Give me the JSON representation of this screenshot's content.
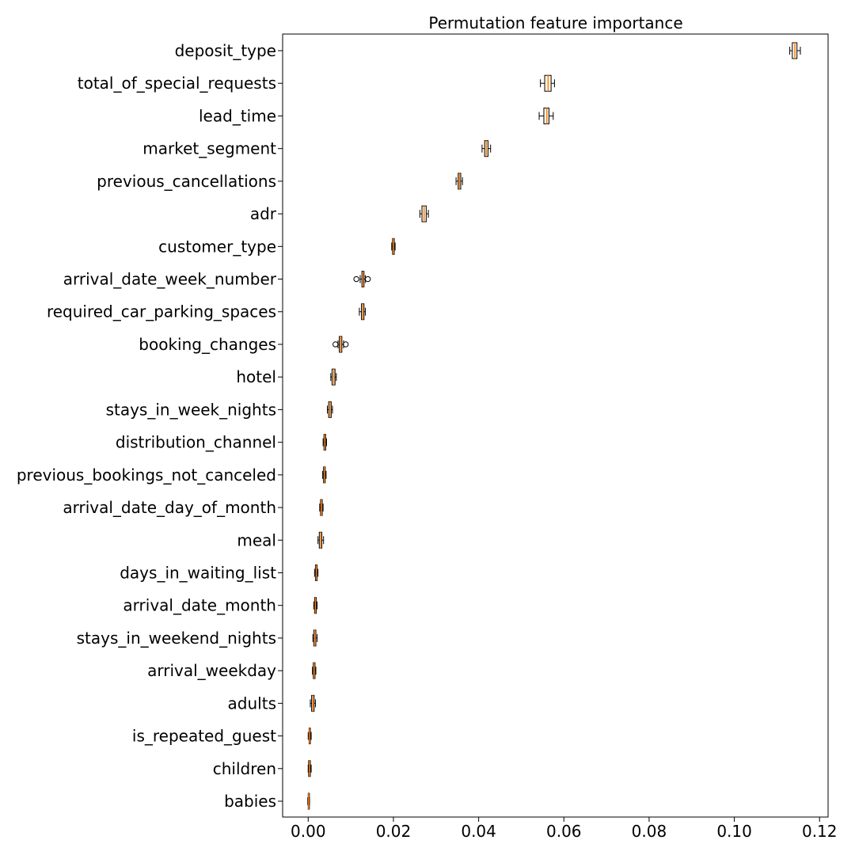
{
  "chart_data": {
    "type": "boxplot",
    "orientation": "horizontal",
    "title": "Permutation feature importance",
    "xlabel": "",
    "ylabel": "",
    "xlim": [
      -0.006,
      0.122
    ],
    "xticks": [
      0.0,
      0.02,
      0.04,
      0.06,
      0.08,
      0.1,
      0.12
    ],
    "xtick_labels": [
      "0.00",
      "0.02",
      "0.04",
      "0.06",
      "0.08",
      "0.10",
      "0.12"
    ],
    "grid": false,
    "legend": "none",
    "colors": {
      "box_edge": "#000000",
      "box_fill": "#fff7e6",
      "median": "#ff7f0e",
      "whisker": "#000000"
    },
    "features": [
      {
        "name": "deposit_type",
        "min": 0.113,
        "q1": 0.1136,
        "median": 0.1142,
        "q3": 0.1147,
        "max": 0.1155,
        "outliers": []
      },
      {
        "name": "total_of_special_requests",
        "min": 0.0545,
        "q1": 0.0555,
        "median": 0.0563,
        "q3": 0.057,
        "max": 0.0578,
        "outliers": []
      },
      {
        "name": "lead_time",
        "min": 0.0542,
        "q1": 0.0553,
        "median": 0.056,
        "q3": 0.0565,
        "max": 0.0575,
        "outliers": []
      },
      {
        "name": "market_segment",
        "min": 0.0408,
        "q1": 0.0414,
        "median": 0.0418,
        "q3": 0.0422,
        "max": 0.0428,
        "outliers": []
      },
      {
        "name": "previous_cancellations",
        "min": 0.0347,
        "q1": 0.0352,
        "median": 0.0355,
        "q3": 0.0358,
        "max": 0.0362,
        "outliers": []
      },
      {
        "name": "adr",
        "min": 0.0262,
        "q1": 0.0267,
        "median": 0.0272,
        "q3": 0.0277,
        "max": 0.0282,
        "outliers": []
      },
      {
        "name": "customer_type",
        "min": 0.0196,
        "q1": 0.0198,
        "median": 0.02,
        "q3": 0.0202,
        "max": 0.0204,
        "outliers": []
      },
      {
        "name": "arrival_date_week_number",
        "min": 0.0122,
        "q1": 0.0126,
        "median": 0.0129,
        "q3": 0.0131,
        "max": 0.0134,
        "outliers": [
          0.0113,
          0.014
        ]
      },
      {
        "name": "required_car_parking_spaces",
        "min": 0.012,
        "q1": 0.0125,
        "median": 0.0128,
        "q3": 0.0131,
        "max": 0.0134,
        "outliers": []
      },
      {
        "name": "booking_changes",
        "min": 0.007,
        "q1": 0.0073,
        "median": 0.0076,
        "q3": 0.0079,
        "max": 0.0083,
        "outliers": [
          0.0064,
          0.0088
        ]
      },
      {
        "name": "hotel",
        "min": 0.0053,
        "q1": 0.0056,
        "median": 0.006,
        "q3": 0.0063,
        "max": 0.0066,
        "outliers": []
      },
      {
        "name": "stays_in_week_nights",
        "min": 0.0045,
        "q1": 0.0048,
        "median": 0.0051,
        "q3": 0.0054,
        "max": 0.0057,
        "outliers": []
      },
      {
        "name": "distribution_channel",
        "min": 0.0035,
        "q1": 0.0037,
        "median": 0.0039,
        "q3": 0.0041,
        "max": 0.0043,
        "outliers": []
      },
      {
        "name": "previous_bookings_not_canceled",
        "min": 0.0034,
        "q1": 0.0036,
        "median": 0.0038,
        "q3": 0.004,
        "max": 0.0042,
        "outliers": []
      },
      {
        "name": "arrival_date_day_of_month",
        "min": 0.0027,
        "q1": 0.0029,
        "median": 0.0031,
        "q3": 0.0033,
        "max": 0.0035,
        "outliers": []
      },
      {
        "name": "meal",
        "min": 0.0023,
        "q1": 0.0026,
        "median": 0.0029,
        "q3": 0.0032,
        "max": 0.0036,
        "outliers": []
      },
      {
        "name": "days_in_waiting_list",
        "min": 0.0015,
        "q1": 0.0017,
        "median": 0.0019,
        "q3": 0.0021,
        "max": 0.0023,
        "outliers": []
      },
      {
        "name": "arrival_date_month",
        "min": 0.0013,
        "q1": 0.0015,
        "median": 0.0017,
        "q3": 0.0019,
        "max": 0.0021,
        "outliers": []
      },
      {
        "name": "stays_in_weekend_nights",
        "min": 0.0011,
        "q1": 0.0013,
        "median": 0.0015,
        "q3": 0.0018,
        "max": 0.0021,
        "outliers": []
      },
      {
        "name": "arrival_weekday",
        "min": 0.001,
        "q1": 0.0012,
        "median": 0.0014,
        "q3": 0.0016,
        "max": 0.0018,
        "outliers": []
      },
      {
        "name": "adults",
        "min": 0.0005,
        "q1": 0.0008,
        "median": 0.0011,
        "q3": 0.0014,
        "max": 0.0017,
        "outliers": []
      },
      {
        "name": "is_repeated_guest",
        "min": 0.0,
        "q1": 0.0002,
        "median": 0.0003,
        "q3": 0.0005,
        "max": 0.0007,
        "outliers": []
      },
      {
        "name": "children",
        "min": 0.0,
        "q1": 0.0001,
        "median": 0.0003,
        "q3": 0.0005,
        "max": 0.0007,
        "outliers": []
      },
      {
        "name": "babies",
        "min": -0.0001,
        "q1": 0.0,
        "median": 0.0001,
        "q3": 0.0002,
        "max": 0.0003,
        "outliers": []
      }
    ]
  }
}
